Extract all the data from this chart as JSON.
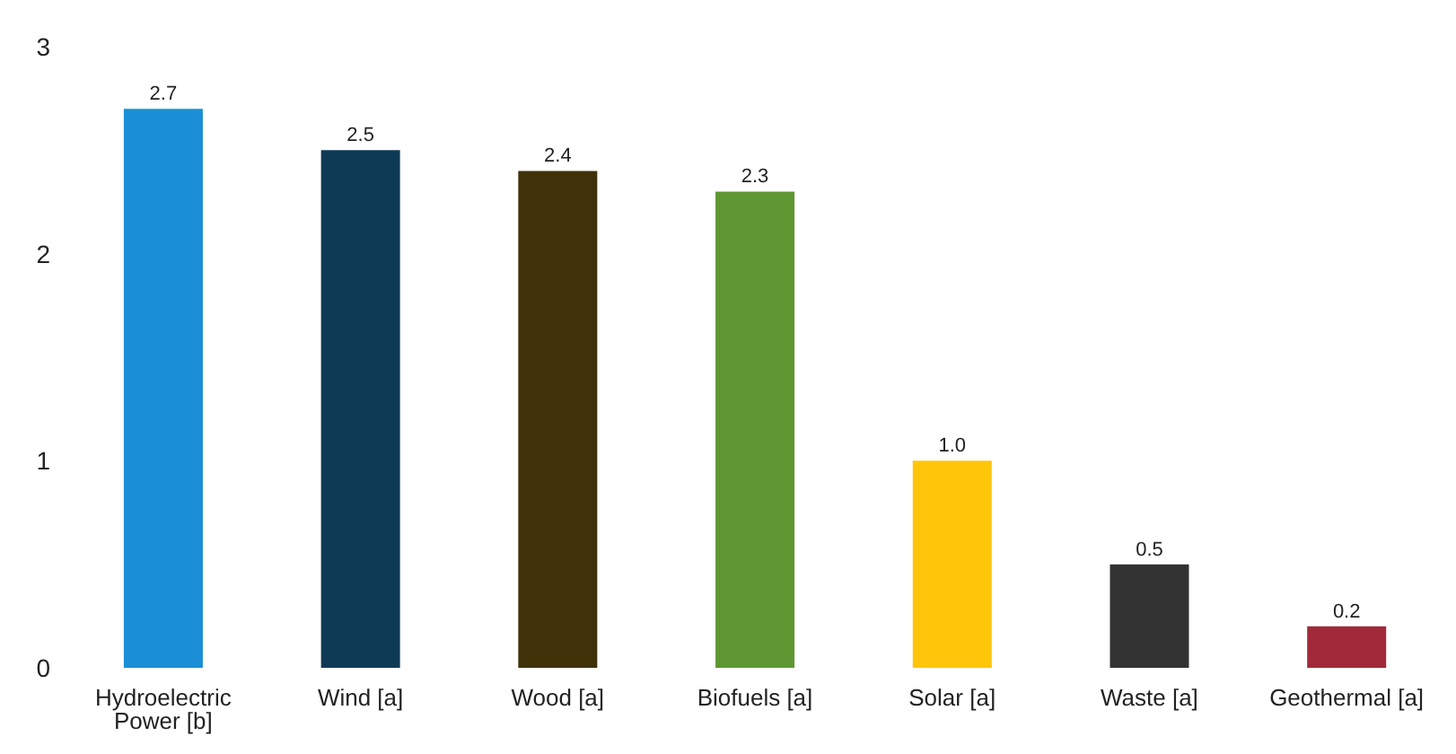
{
  "chart_data": {
    "type": "bar",
    "categories": [
      "Hydroelectric Power [b]",
      "Wind [a]",
      "Wood [a]",
      "Biofuels [a]",
      "Solar [a]",
      "Waste [a]",
      "Geothermal [a]"
    ],
    "values": [
      2.7,
      2.5,
      2.4,
      2.3,
      1.0,
      0.5,
      0.2
    ],
    "colors": [
      "#1a8fd6",
      "#0f3a55",
      "#3f3209",
      "#5e9732",
      "#ffc50a",
      "#333333",
      "#a02a3a"
    ],
    "value_labels": [
      "2.7",
      "2.5",
      "2.4",
      "2.3",
      "1.0",
      "0.5",
      "0.2"
    ],
    "ylim": [
      0,
      3
    ],
    "yticks": [
      0,
      1,
      2,
      3
    ]
  }
}
